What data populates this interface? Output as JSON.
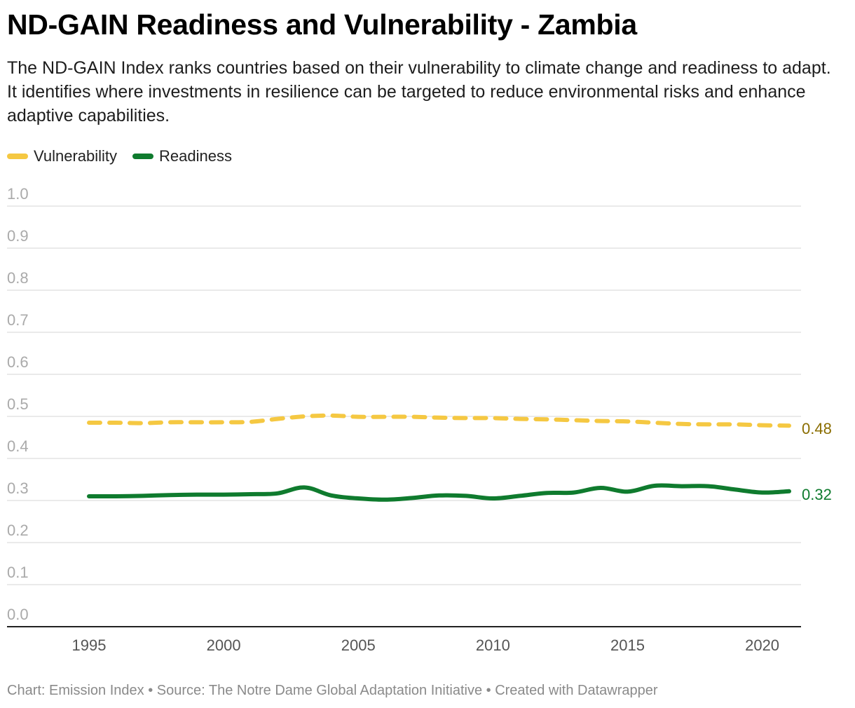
{
  "chart_data": {
    "type": "line",
    "title": "ND-GAIN Readiness and Vulnerability - Zambia",
    "subtitle": "The ND-GAIN Index ranks countries based on their vulnerability to climate change and readiness to adapt. It identifies where investments in resilience can be targeted to reduce environmental risks and enhance adaptive capabilities.",
    "x": [
      1995,
      1996,
      1997,
      1998,
      1999,
      2000,
      2001,
      2002,
      2003,
      2004,
      2005,
      2006,
      2007,
      2008,
      2009,
      2010,
      2011,
      2012,
      2013,
      2014,
      2015,
      2016,
      2017,
      2018,
      2019,
      2020,
      2021
    ],
    "series": [
      {
        "name": "Vulnerability",
        "color": "#f5c842",
        "dashed": true,
        "end_label": "0.48",
        "end_label_color": "#8a6d00",
        "values": [
          0.485,
          0.485,
          0.484,
          0.486,
          0.486,
          0.486,
          0.487,
          0.494,
          0.5,
          0.502,
          0.499,
          0.499,
          0.499,
          0.497,
          0.496,
          0.496,
          0.494,
          0.493,
          0.491,
          0.489,
          0.488,
          0.485,
          0.482,
          0.481,
          0.481,
          0.479,
          0.478
        ]
      },
      {
        "name": "Readiness",
        "color": "#0f7b2e",
        "dashed": false,
        "end_label": "0.32",
        "end_label_color": "#0f7b2e",
        "values": [
          0.31,
          0.31,
          0.311,
          0.313,
          0.314,
          0.314,
          0.315,
          0.317,
          0.331,
          0.312,
          0.305,
          0.302,
          0.306,
          0.312,
          0.311,
          0.305,
          0.311,
          0.318,
          0.319,
          0.33,
          0.321,
          0.335,
          0.334,
          0.334,
          0.326,
          0.319,
          0.322
        ]
      }
    ],
    "xticks": [
      "1995",
      "2000",
      "2005",
      "2010",
      "2015",
      "2020"
    ],
    "yticks": [
      "1.0",
      "0.9",
      "0.8",
      "0.7",
      "0.6",
      "0.5",
      "0.4",
      "0.3",
      "0.2",
      "0.1",
      "0.0"
    ],
    "ylim": [
      0,
      1
    ],
    "xlim": [
      1995,
      2021
    ],
    "grid": true,
    "legend_position": "top-left",
    "xlabel": "",
    "ylabel": ""
  },
  "footer": {
    "text": "Chart: Emission Index • Source: The Notre Dame Global Adaptation Initiative • Created with Datawrapper"
  },
  "colors": {
    "grid": "#dddddd",
    "axis": "#222222"
  }
}
